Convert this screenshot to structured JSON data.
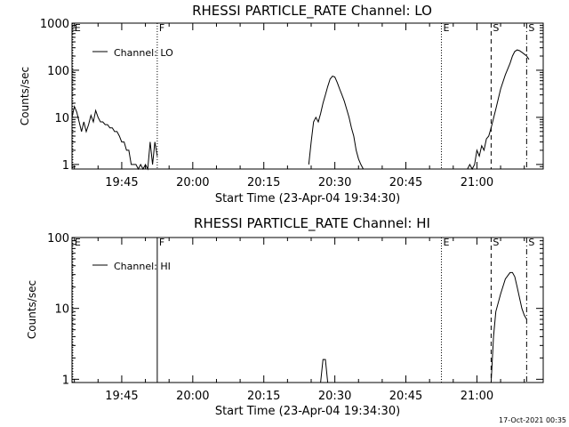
{
  "footer": {
    "timestamp": "17-Oct-2021 00:35"
  },
  "chart_data": [
    {
      "type": "line",
      "title": "RHESSI PARTICLE_RATE Channel: LO",
      "xlabel": "Start Time (23-Apr-04 19:34:30)",
      "ylabel": "Counts/sec",
      "y_scale": "log",
      "xlim": [
        "19:34:30",
        "21:14:00"
      ],
      "ylim": [
        0.8,
        1000
      ],
      "x_ticks": [
        "19:45",
        "20:00",
        "20:15",
        "20:30",
        "20:45",
        "21:00"
      ],
      "y_ticks": [
        "1",
        "10",
        "100",
        "1000"
      ],
      "grid": false,
      "legend": {
        "position": "top-left",
        "entries": [
          "Channel: LO"
        ]
      },
      "markers": [
        {
          "label": "E",
          "time": "19:34:40",
          "style": "dotted"
        },
        {
          "label": "F",
          "time": "19:52:30",
          "style": "dotted"
        },
        {
          "label": "E",
          "time": "20:52:30",
          "style": "dotted"
        },
        {
          "label": "S",
          "time": "21:03:00",
          "style": "dashed"
        },
        {
          "label": "S",
          "time": "21:10:30",
          "style": "dashdot"
        }
      ],
      "series": [
        {
          "name": "Channel: LO",
          "segments": [
            {
              "x": [
                "19:34:30",
                "19:35:00",
                "19:35:30",
                "19:36:00",
                "19:36:30",
                "19:37:00",
                "19:37:30",
                "19:38:00",
                "19:38:30",
                "19:39:00",
                "19:39:30",
                "19:40:00",
                "19:40:30",
                "19:41:00",
                "19:41:30",
                "19:42:00",
                "19:42:30",
                "19:43:00",
                "19:43:30",
                "19:44:00",
                "19:44:30",
                "19:45:00",
                "19:45:30",
                "19:46:00",
                "19:46:30",
                "19:47:00",
                "19:47:30",
                "19:48:00",
                "19:48:30",
                "19:49:00",
                "19:49:30",
                "19:50:00",
                "19:50:30",
                "19:51:00",
                "19:51:30",
                "19:52:00",
                "19:52:30"
              ],
              "y": [
                10,
                17,
                13,
                8,
                5,
                8,
                5,
                7,
                11,
                8,
                14,
                10,
                8,
                8,
                7,
                7,
                6,
                6,
                5,
                5,
                4,
                3,
                3,
                2,
                2,
                1,
                1,
                1,
                0.8,
                1,
                0.8,
                1,
                0.8,
                3,
                1,
                3,
                1.5
              ]
            },
            {
              "x": [
                "20:24:30",
                "20:25:00",
                "20:25:30",
                "20:26:00",
                "20:26:30",
                "20:27:00",
                "20:27:30",
                "20:28:00",
                "20:28:30",
                "20:29:00",
                "20:29:30",
                "20:30:00",
                "20:30:30",
                "20:31:00",
                "20:31:30",
                "20:32:00",
                "20:32:30",
                "20:33:00",
                "20:33:30",
                "20:34:00",
                "20:34:30",
                "20:35:00",
                "20:35:30",
                "20:36:00"
              ],
              "y": [
                1,
                3,
                8,
                10,
                8,
                12,
                20,
                30,
                45,
                65,
                75,
                72,
                55,
                40,
                30,
                22,
                15,
                10,
                6,
                4,
                2,
                1.3,
                1,
                0.8
              ]
            },
            {
              "x": [
                "20:58:00",
                "20:58:30",
                "20:59:00",
                "20:59:30",
                "21:00:00",
                "21:00:30",
                "21:01:00",
                "21:01:30",
                "21:02:00",
                "21:02:30",
                "21:03:00",
                "21:04:00",
                "21:05:00",
                "21:06:00",
                "21:07:00",
                "21:07:30",
                "21:08:00",
                "21:08:30",
                "21:09:00",
                "21:09:30",
                "21:10:00",
                "21:10:30",
                "21:11:00"
              ],
              "y": [
                0.8,
                1,
                0.8,
                1,
                2,
                1.5,
                2.5,
                2,
                3.5,
                4,
                6,
                15,
                40,
                80,
                140,
                200,
                250,
                270,
                260,
                240,
                220,
                200,
                170
              ]
            }
          ]
        }
      ]
    },
    {
      "type": "line",
      "title": "RHESSI PARTICLE_RATE Channel: HI",
      "xlabel": "Start Time (23-Apr-04 19:34:30)",
      "ylabel": "Counts/sec",
      "y_scale": "log",
      "xlim": [
        "19:34:30",
        "21:14:00"
      ],
      "ylim": [
        0.9,
        100
      ],
      "x_ticks": [
        "19:45",
        "20:00",
        "20:15",
        "20:30",
        "20:45",
        "21:00"
      ],
      "y_ticks": [
        "1",
        "10",
        "100"
      ],
      "grid": false,
      "legend": {
        "position": "top-left",
        "entries": [
          "Channel: HI"
        ]
      },
      "markers": [
        {
          "label": "E",
          "time": "19:34:40",
          "style": "dotted"
        },
        {
          "label": "F",
          "time": "19:52:30",
          "style": "solid"
        },
        {
          "label": "E",
          "time": "20:52:30",
          "style": "dotted"
        },
        {
          "label": "S",
          "time": "21:03:00",
          "style": "dashed"
        },
        {
          "label": "S",
          "time": "21:10:30",
          "style": "dashdot"
        }
      ],
      "series": [
        {
          "name": "Channel: HI",
          "segments": [
            {
              "x": [
                "20:27:00",
                "20:27:30",
                "20:28:00",
                "20:28:30"
              ],
              "y": [
                0.9,
                1.9,
                1.9,
                0.9
              ]
            },
            {
              "x": [
                "21:03:00",
                "21:03:30",
                "21:04:00",
                "21:05:00",
                "21:06:00",
                "21:07:00",
                "21:07:30",
                "21:08:00",
                "21:08:30",
                "21:09:00",
                "21:09:30",
                "21:10:00",
                "21:10:30"
              ],
              "y": [
                0.9,
                4,
                9,
                16,
                26,
                32,
                32,
                28,
                20,
                14,
                10,
                8,
                7
              ]
            }
          ]
        }
      ]
    }
  ]
}
